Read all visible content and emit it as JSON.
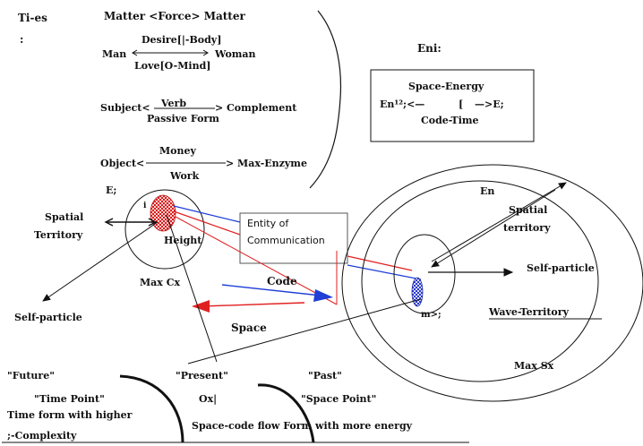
{
  "ties": {
    "heading": "Ti-es",
    "colon": ":",
    "row1": "Matter <Force> Matter",
    "row2_left": "Man",
    "row2_top": "Desire[|-Body]",
    "row2_right": "Woman",
    "row2_bottom": "Love[O-Mind]",
    "row3_left": "Subject<",
    "row3_top": "Verb",
    "row3_right": "> Complement",
    "row3_bottom": "Passive Form",
    "row4_left": "Object<",
    "row4_top": "Money",
    "row4_right": "> Max-Enzyme",
    "row4_bottom": "Work"
  },
  "eni": {
    "label": "Eni:",
    "top": "Space-Energy",
    "left": "En¹²;<—",
    "mid": "[",
    "right": "—>E;",
    "bottom": "Code-Time"
  },
  "left_node": {
    "e_label": "E;",
    "i_label": "i",
    "spatial": "Spatial",
    "territory": "Territory",
    "height": "Height",
    "max_cx": "Max Cx",
    "self_particle": "Self-particle"
  },
  "entity": {
    "line1": "Entity of",
    "line2": "Communication"
  },
  "flow": {
    "code": "Code",
    "space": "Space"
  },
  "right_node": {
    "en_label": "En",
    "spatial": "Spatial",
    "territory": "territory",
    "self_particle": "Self-particle",
    "m_label": "m>;",
    "wave_territory": "Wave-Territory",
    "max_sx": "Max Sx"
  },
  "timeline": {
    "future": "\"Future\"",
    "present": "\"Present\"",
    "past": "\"Past\"",
    "time_point": "\"Time Point\"",
    "ox": "Ox|",
    "space_point": "\"Space Point\"",
    "time_form": "Time form with higher",
    "complexity": ";-Complexity",
    "flow": "Space-code flow Form with more energy"
  },
  "colors": {
    "code_arrow": "#1f3fd6",
    "space_arrow": "#e02020",
    "dot_red": "#e03030",
    "dot_blue": "#3344cc"
  }
}
